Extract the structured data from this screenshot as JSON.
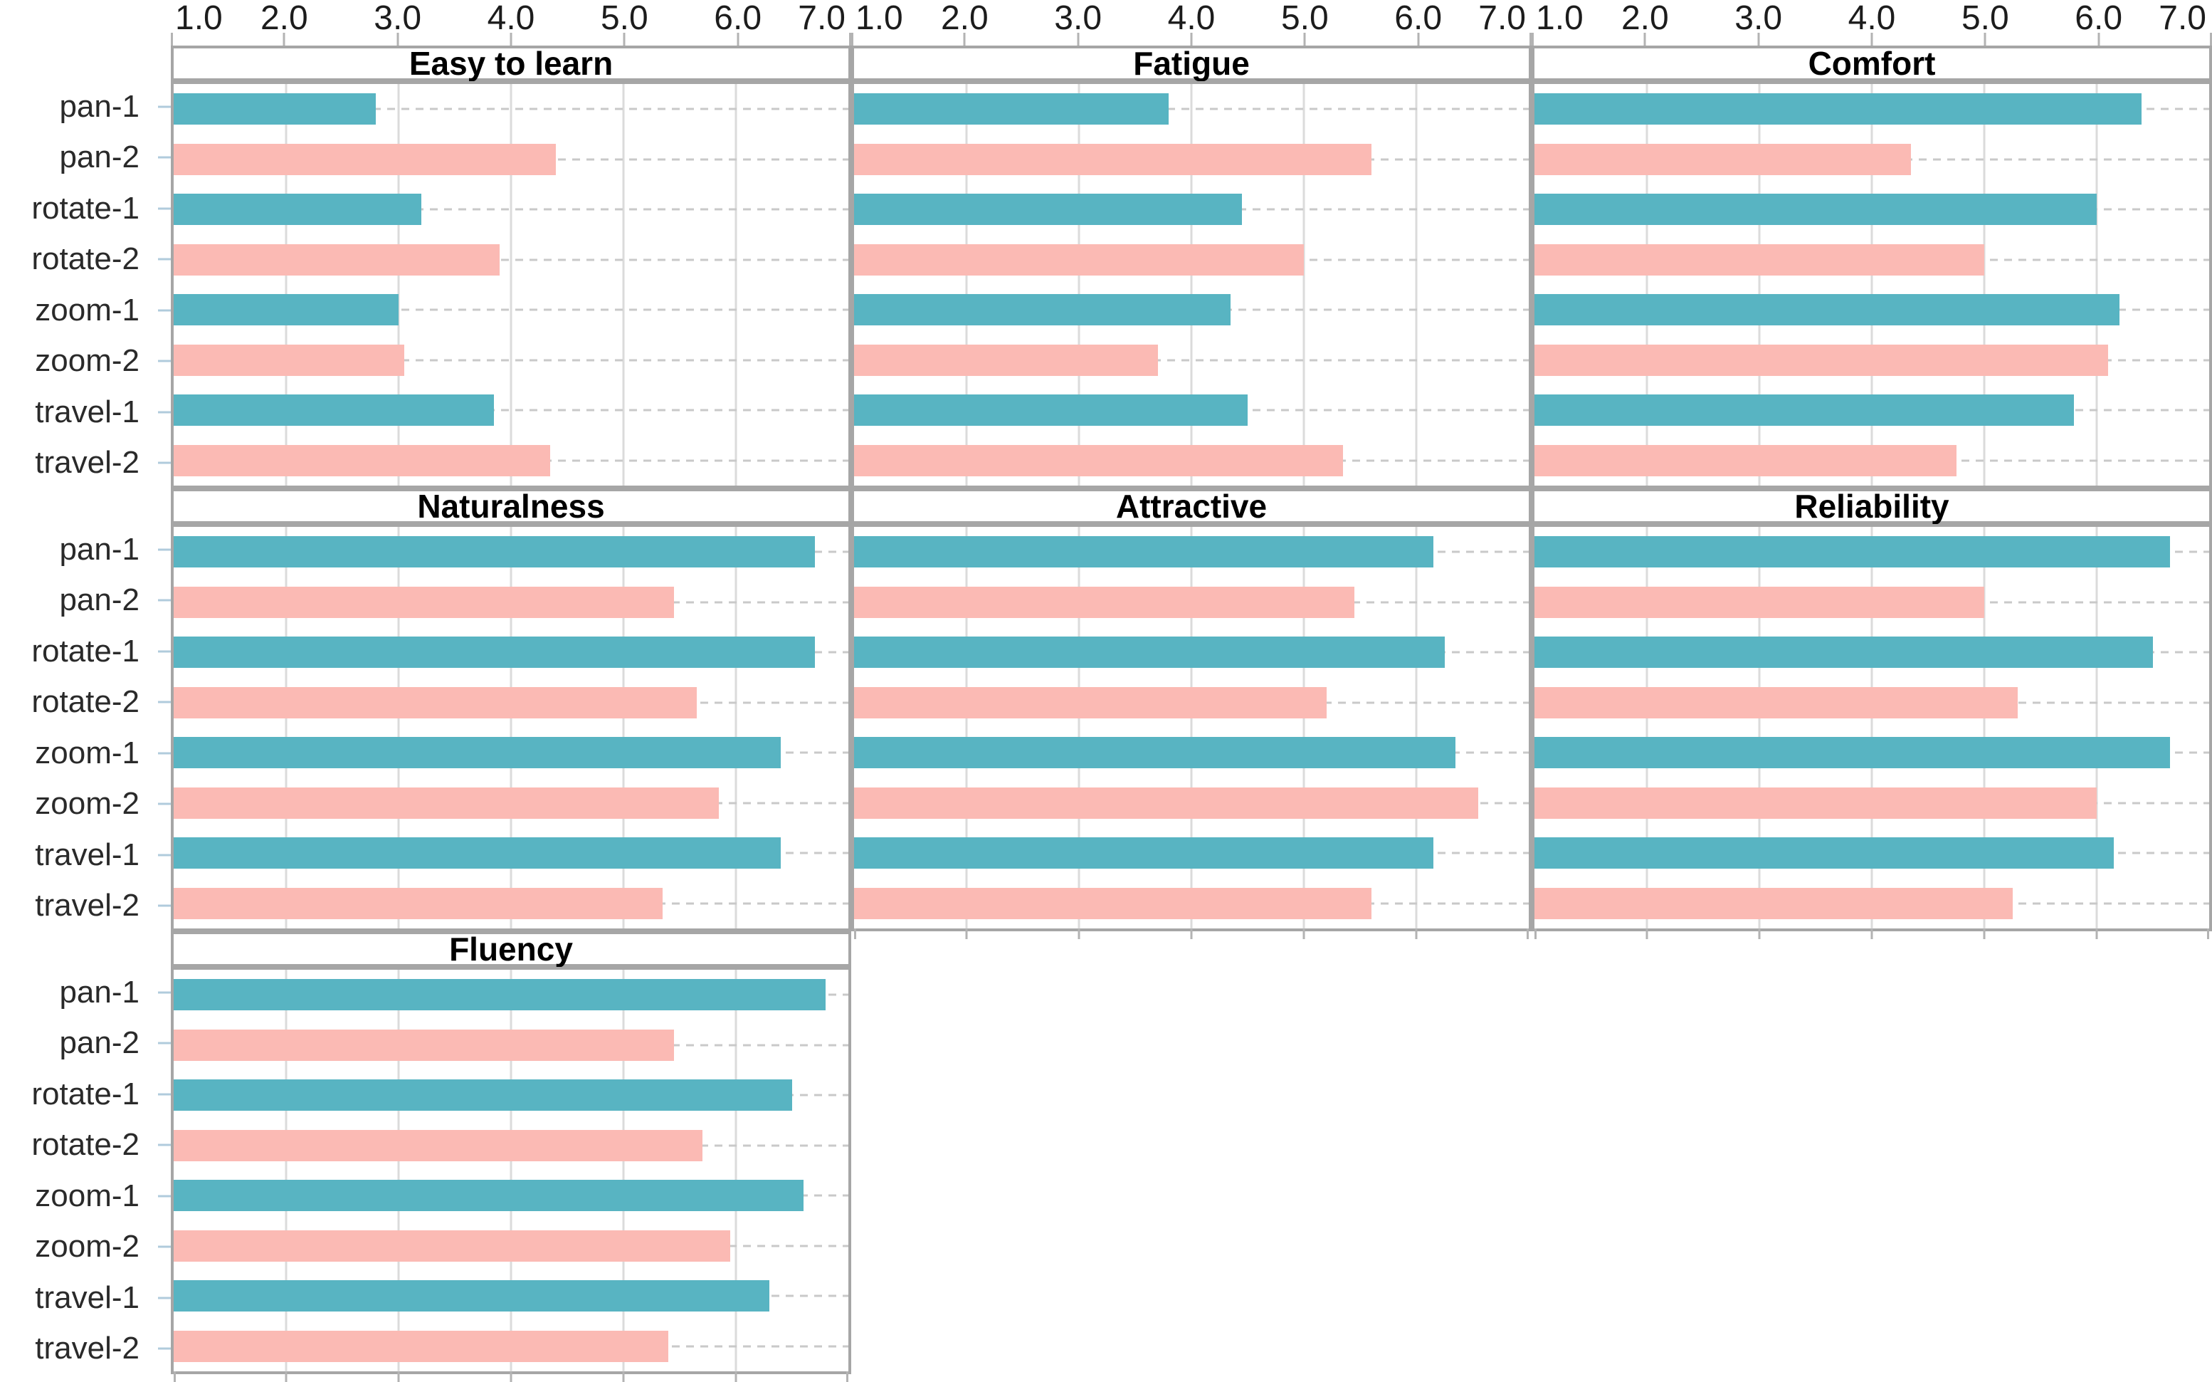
{
  "chart_data": {
    "type": "bar",
    "orientation": "horizontal",
    "layout": "faceted small multiples, 3 columns x 3 rows (7 panels)",
    "x_axis": {
      "position": "top",
      "domain": [
        1.0,
        7.0
      ],
      "ticks": [
        1.0,
        2.0,
        3.0,
        4.0,
        5.0,
        6.0,
        7.0
      ],
      "tick_labels": [
        "1.0",
        "2.0",
        "3.0",
        "4.0",
        "5.0",
        "6.0",
        "7.0"
      ],
      "grid": "solid light vertical gridlines at integers; dashed horizontal rule per category row"
    },
    "categories": [
      "pan-1",
      "pan-2",
      "rotate-1",
      "rotate-2",
      "zoom-1",
      "zoom-2",
      "travel-1",
      "travel-2"
    ],
    "bar_colors": {
      "variant_1_teal": "#58b4c2",
      "variant_2_pink": "#fbbab4"
    },
    "panels": [
      {
        "title": "Easy to learn",
        "row": 0,
        "col": 0,
        "bottom_ticks": false,
        "values": [
          2.8,
          4.4,
          3.2,
          3.9,
          3.0,
          3.05,
          3.85,
          4.35
        ]
      },
      {
        "title": "Fatigue",
        "row": 0,
        "col": 1,
        "bottom_ticks": false,
        "values": [
          3.8,
          5.6,
          4.45,
          5.0,
          4.35,
          3.7,
          4.5,
          5.35
        ]
      },
      {
        "title": "Comfort",
        "row": 0,
        "col": 2,
        "bottom_ticks": false,
        "values": [
          6.4,
          4.35,
          6.0,
          5.0,
          6.2,
          6.1,
          5.8,
          4.75
        ]
      },
      {
        "title": "Naturalness",
        "row": 1,
        "col": 0,
        "bottom_ticks": false,
        "values": [
          6.7,
          5.45,
          6.7,
          5.65,
          6.4,
          5.85,
          6.4,
          5.35
        ]
      },
      {
        "title": "Attractive",
        "row": 1,
        "col": 1,
        "bottom_ticks": true,
        "values": [
          6.15,
          5.45,
          6.25,
          5.2,
          6.35,
          6.55,
          6.15,
          5.6
        ]
      },
      {
        "title": "Reliability",
        "row": 1,
        "col": 2,
        "bottom_ticks": true,
        "values": [
          6.65,
          5.0,
          6.5,
          5.3,
          6.65,
          6.0,
          6.15,
          5.25
        ]
      },
      {
        "title": "Fluency",
        "row": 2,
        "col": 0,
        "bottom_ticks": true,
        "values": [
          6.8,
          5.45,
          6.5,
          5.7,
          6.6,
          5.95,
          6.3,
          5.4
        ]
      }
    ],
    "style_colors": {
      "panel_border": "#a6a6a6",
      "gridline": "#dbdbdb",
      "row_rule_dash": "#c9c9c9",
      "axis_tick": "#b3b3b3",
      "left_tick": "#b0cbdc",
      "axis_label_text": "#1c1c1c",
      "y_label_text": "#2a2a2a",
      "title_text": "#000000"
    }
  }
}
